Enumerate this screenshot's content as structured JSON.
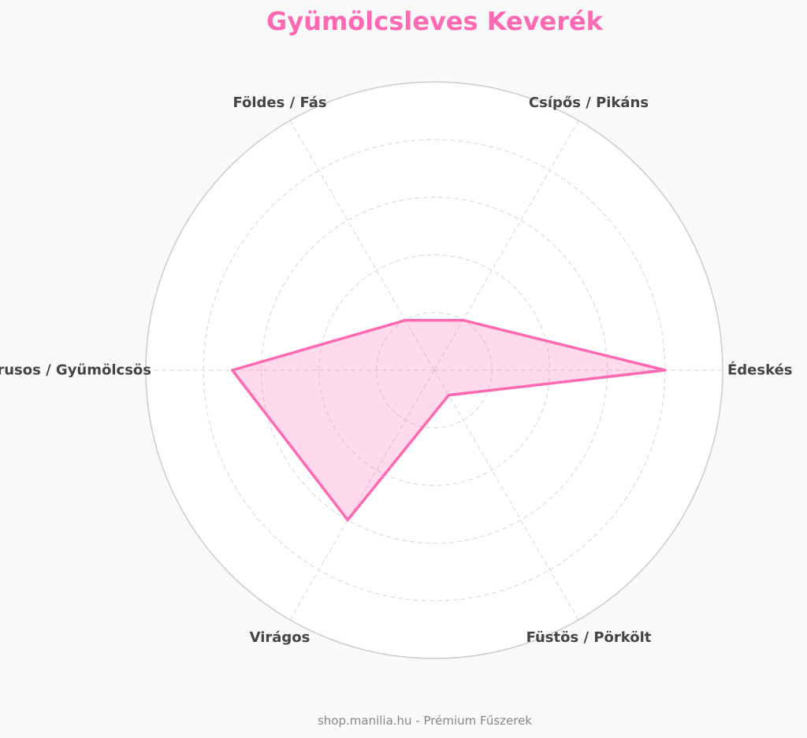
{
  "chart_data": {
    "type": "radar",
    "title": "Gyümölcsleves Keverék",
    "axes": [
      "Édeskés",
      "Csípős / Pikáns",
      "Földes / Fás",
      "Citrusos / Gyümölcsös",
      "Virágos",
      "Füstös / Pörkölt"
    ],
    "series": [
      {
        "values": [
          8,
          2,
          2,
          7,
          6,
          1
        ]
      }
    ],
    "rlim": [
      0,
      10
    ],
    "grid": true,
    "gridline_style": "dashed",
    "colors": {
      "line": "#ff69b4",
      "fill": "#ff69b4",
      "title": "#ff69b4",
      "axis_label": "#444444",
      "grid": "#dddddd",
      "outer_ring": "#cccccc",
      "plot_background": "#ffffff",
      "page_background": "#f9f9f9"
    }
  },
  "footer": {
    "text": "shop.manilia.hu - Prémium Fűszerek"
  }
}
